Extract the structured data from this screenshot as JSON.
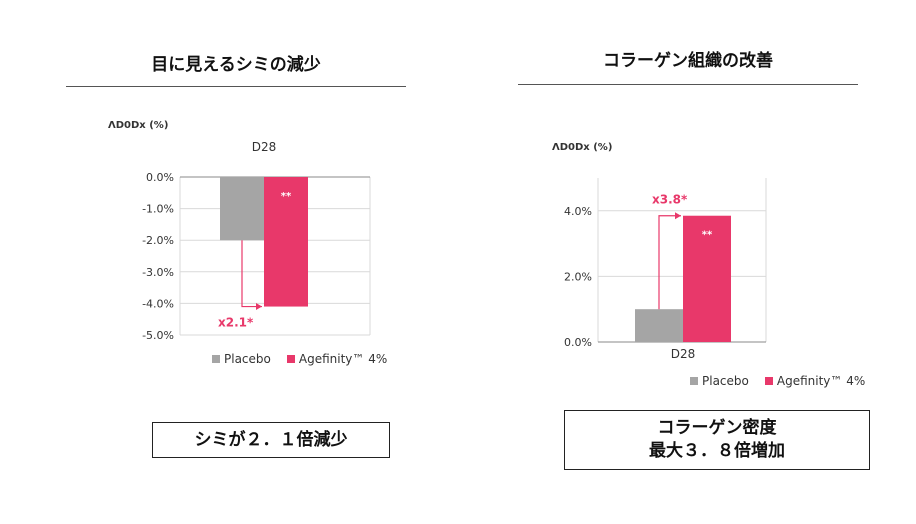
{
  "colors": {
    "placebo": "#a5a5a5",
    "agefinity": "#e8386a",
    "arrow": "#e8386a",
    "grid": "#d9d9d9",
    "axis": "#888888"
  },
  "left_panel": {
    "title": "目に見えるシミの減少",
    "ylabel": "ΛD0Dx (%)",
    "legend": [
      "Placebo",
      "Agefinity™ 4%"
    ],
    "callout": {
      "line1": "シミが２．１倍減少"
    }
  },
  "right_panel": {
    "title": "コラーゲン組織の改善",
    "ylabel": "ΛD0Dx (%)",
    "legend": [
      "Placebo",
      "Agefinity™ 4%"
    ],
    "callout": {
      "line1": "コラーゲン密度",
      "line2": "最大３．８倍増加"
    }
  },
  "chart_data": [
    {
      "type": "bar",
      "title": "目に見えるシミの減少",
      "ylabel": "ΛD0Dx (%)",
      "categories": [
        "D28"
      ],
      "category_label_position": "top",
      "series": [
        {
          "name": "Placebo",
          "values": [
            -2.0
          ]
        },
        {
          "name": "Agefinity™ 4%",
          "values": [
            -4.1
          ],
          "significance": "**"
        }
      ],
      "ylim": [
        -5.0,
        0.0
      ],
      "yticks": [
        0,
        -1,
        -2,
        -3,
        -4,
        -5
      ],
      "ytick_labels": [
        "0.0%",
        "-1.0%",
        "-2.0%",
        "-3.0%",
        "-4.0%",
        "-5.0%"
      ],
      "grid": true,
      "legend": "bottom",
      "annotation": "x2.1*"
    },
    {
      "type": "bar",
      "title": "コラーゲン組織の改善",
      "ylabel": "ΛD0Dx (%)",
      "categories": [
        "D28"
      ],
      "category_label_position": "bottom",
      "series": [
        {
          "name": "Placebo",
          "values": [
            1.0
          ]
        },
        {
          "name": "Agefinity™ 4%",
          "values": [
            3.85
          ],
          "significance": "**"
        }
      ],
      "ylim": [
        0.0,
        5.0
      ],
      "yticks": [
        0,
        2,
        4
      ],
      "ytick_labels": [
        "0.0%",
        "2.0%",
        "4.0%"
      ],
      "grid": true,
      "legend": "bottom",
      "annotation": "x3.8*"
    }
  ]
}
